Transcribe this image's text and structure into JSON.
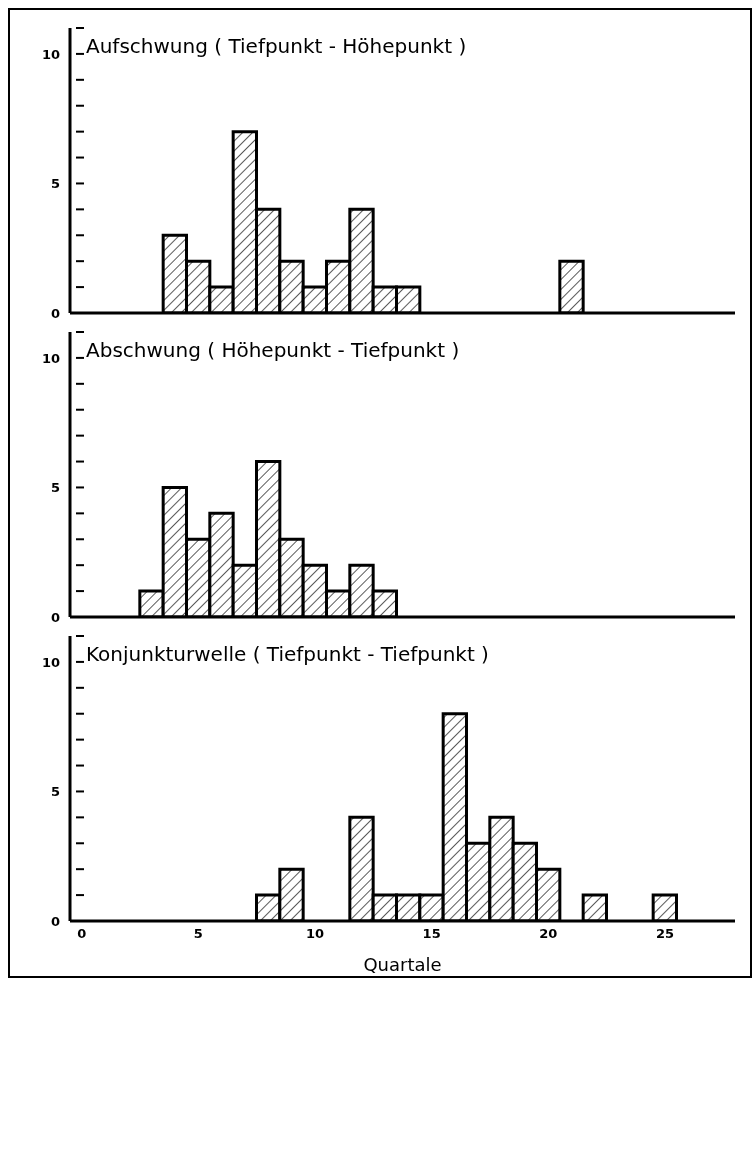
{
  "chart_data": [
    {
      "type": "histogram",
      "title": "Aufschwung ( Tiefpunkt - Höhepunkt )",
      "bins": [
        3.5,
        4.5,
        5.5,
        6.5,
        7.5,
        8.5,
        9.5,
        10.5,
        11.5,
        12.5,
        13.5,
        14.5,
        15.5,
        16.5,
        17.5,
        18.5,
        19.5,
        20.5,
        21.5
      ],
      "values": [
        3,
        2,
        1,
        7,
        4,
        2,
        1,
        2,
        4,
        1,
        1,
        0,
        0,
        0,
        0,
        0,
        0,
        2
      ],
      "color": "#000000",
      "xlim": [
        -0.5,
        28
      ],
      "xticks": [
        0,
        5,
        10,
        15,
        20,
        25
      ],
      "ylim": [
        0,
        11
      ],
      "yticks": [
        0,
        {
          "value": 1,
          "label": null
        },
        {
          "value": 2,
          "label": null
        },
        {
          "value": 3,
          "label": null
        },
        {
          "value": 4,
          "label": null
        },
        5,
        {
          "value": 6,
          "label": null
        },
        {
          "value": 7,
          "label": null
        },
        {
          "value": 8,
          "label": null
        },
        {
          "value": 9,
          "label": null
        },
        10,
        {
          "value": 11,
          "label": null
        }
      ],
      "tick_labels": "y"
    },
    {
      "type": "histogram",
      "title": "Abschwung ( Höhepunkt - Tiefpunkt )",
      "bins": [
        2.5,
        3.5,
        4.5,
        5.5,
        6.5,
        7.5,
        8.5,
        9.5,
        10.5,
        11.5,
        12.5,
        13.5
      ],
      "values": [
        1,
        5,
        3,
        4,
        2,
        6,
        3,
        2,
        1,
        2,
        1
      ],
      "color": "#000000",
      "xlim": [
        -0.5,
        28
      ],
      "xticks": [
        0,
        5,
        10,
        15,
        20,
        25
      ],
      "ylim": [
        0,
        11
      ],
      "yticks": [
        0,
        {
          "value": 1,
          "label": null
        },
        {
          "value": 2,
          "label": null
        },
        {
          "value": 3,
          "label": null
        },
        {
          "value": 4,
          "label": null
        },
        5,
        {
          "value": 6,
          "label": null
        },
        {
          "value": 7,
          "label": null
        },
        {
          "value": 8,
          "label": null
        },
        {
          "value": 9,
          "label": null
        },
        10,
        {
          "value": 11,
          "label": null
        }
      ],
      "tick_labels": "y"
    },
    {
      "type": "histogram",
      "title": "Konjunkturwelle ( Tiefpunkt - Tiefpunkt )",
      "xlabel": "Quartale",
      "bins": [
        7.5,
        8.5,
        9.5,
        10.5,
        11.5,
        12.5,
        13.5,
        14.5,
        15.5,
        16.5,
        17.5,
        18.5,
        19.5,
        20.5,
        21.5,
        22.5,
        23.5,
        24.5,
        25.5
      ],
      "values": [
        1,
        2,
        0,
        0,
        4,
        1,
        1,
        1,
        8,
        3,
        4,
        3,
        2,
        0,
        1,
        0,
        0,
        1
      ],
      "color": "#000000",
      "xlim": [
        -0.5,
        28
      ],
      "xticks": [
        0,
        5,
        10,
        15,
        20,
        25
      ],
      "ylim": [
        0,
        11
      ],
      "yticks": [
        0,
        {
          "value": 1,
          "label": null
        },
        {
          "value": 2,
          "label": null
        },
        {
          "value": 3,
          "label": null
        },
        {
          "value": 4,
          "label": null
        },
        5,
        {
          "value": 6,
          "label": null
        },
        {
          "value": 7,
          "label": null
        },
        {
          "value": 8,
          "label": null
        },
        {
          "value": 9,
          "label": null
        },
        10,
        {
          "value": 11,
          "label": null
        }
      ]
    }
  ]
}
